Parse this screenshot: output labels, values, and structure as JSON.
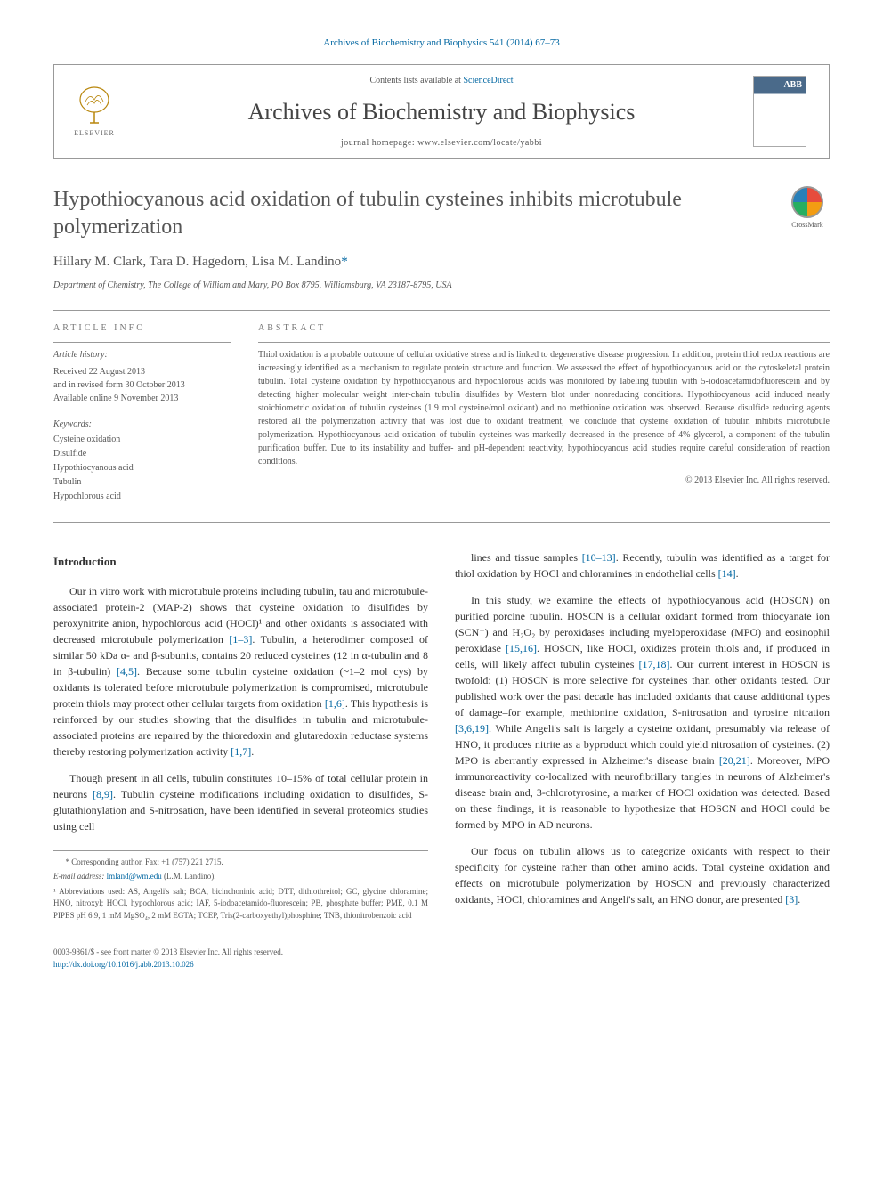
{
  "citation": {
    "text": "Archives of Biochemistry and Biophysics 541 (2014) 67–73"
  },
  "masthead": {
    "contents_prefix": "Contents lists available at ",
    "contents_link": "ScienceDirect",
    "journal": "Archives of Biochemistry and Biophysics",
    "homepage_prefix": "journal homepage: ",
    "homepage": "www.elsevier.com/locate/yabbi",
    "publisher": "ELSEVIER"
  },
  "article": {
    "title": "Hypothiocyanous acid oxidation of tubulin cysteines inhibits microtubule polymerization",
    "authors_html": "Hillary M. Clark, Tara D. Hagedorn, Lisa M. Landino",
    "corr_marker": "*",
    "affiliation": "Department of Chemistry, The College of William and Mary, PO Box 8795, Williamsburg, VA 23187-8795, USA",
    "crossmark_label": "CrossMark"
  },
  "info": {
    "heading": "article info",
    "history_label": "Article history:",
    "received": "Received 22 August 2013",
    "revised": "and in revised form 30 October 2013",
    "online": "Available online 9 November 2013",
    "keywords_label": "Keywords:",
    "kw1": "Cysteine oxidation",
    "kw2": "Disulfide",
    "kw3": "Hypothiocyanous acid",
    "kw4": "Tubulin",
    "kw5": "Hypochlorous acid"
  },
  "abstract": {
    "heading": "abstract",
    "text": "Thiol oxidation is a probable outcome of cellular oxidative stress and is linked to degenerative disease progression. In addition, protein thiol redox reactions are increasingly identified as a mechanism to regulate protein structure and function. We assessed the effect of hypothiocyanous acid on the cytoskeletal protein tubulin. Total cysteine oxidation by hypothiocyanous and hypochlorous acids was monitored by labeling tubulin with 5-iodoacetamidofluorescein and by detecting higher molecular weight inter-chain tubulin disulfides by Western blot under nonreducing conditions. Hypothiocyanous acid induced nearly stoichiometric oxidation of tubulin cysteines (1.9 mol cysteine/mol oxidant) and no methionine oxidation was observed. Because disulfide reducing agents restored all the polymerization activity that was lost due to oxidant treatment, we conclude that cysteine oxidation of tubulin inhibits microtubule polymerization. Hypothiocyanous acid oxidation of tubulin cysteines was markedly decreased in the presence of 4% glycerol, a component of the tubulin purification buffer. Due to its instability and buffer- and pH-dependent reactivity, hypothiocyanous acid studies require careful consideration of reaction conditions.",
    "copyright": "© 2013 Elsevier Inc. All rights reserved."
  },
  "body": {
    "intro_heading": "Introduction",
    "p1": "Our in vitro work with microtubule proteins including tubulin, tau and microtubule-associated protein-2 (MAP-2) shows that cysteine oxidation to disulfides by peroxynitrite anion, hypochlorous acid (HOCl)¹ and other oxidants is associated with decreased microtubule polymerization [1–3]. Tubulin, a heterodimer composed of similar 50 kDa α- and β-subunits, contains 20 reduced cysteines (12 in α-tubulin and 8 in β-tubulin) [4,5]. Because some tubulin cysteine oxidation (~1–2 mol cys) by oxidants is tolerated before microtubule polymerization is compromised, microtubule protein thiols may protect other cellular targets from oxidation [1,6]. This hypothesis is reinforced by our studies showing that the disulfides in tubulin and microtubule-associated proteins are repaired by the thioredoxin and glutaredoxin reductase systems thereby restoring polymerization activity [1,7].",
    "p2": "Though present in all cells, tubulin constitutes 10–15% of total cellular protein in neurons [8,9]. Tubulin cysteine modifications including oxidation to disulfides, S-glutathionylation and S-nitrosation, have been identified in several proteomics studies using cell",
    "p3": "lines and tissue samples [10–13]. Recently, tubulin was identified as a target for thiol oxidation by HOCl and chloramines in endothelial cells [14].",
    "p4": "In this study, we examine the effects of hypothiocyanous acid (HOSCN) on purified porcine tubulin. HOSCN is a cellular oxidant formed from thiocyanate ion (SCN⁻) and H₂O₂ by peroxidases including myeloperoxidase (MPO) and eosinophil peroxidase [15,16]. HOSCN, like HOCl, oxidizes protein thiols and, if produced in cells, will likely affect tubulin cysteines [17,18]. Our current interest in HOSCN is twofold: (1) HOSCN is more selective for cysteines than other oxidants tested. Our published work over the past decade has included oxidants that cause additional types of damage–for example, methionine oxidation, S-nitrosation and tyrosine nitration [3,6,19]. While Angeli's salt is largely a cysteine oxidant, presumably via release of HNO, it produces nitrite as a byproduct which could yield nitrosation of cysteines. (2) MPO is aberrantly expressed in Alzheimer's disease brain [20,21]. Moreover, MPO immunoreactivity co-localized with neurofibrillary tangles in neurons of Alzheimer's disease brain and, 3-chlorotyrosine, a marker of HOCl oxidation was detected. Based on these findings, it is reasonable to hypothesize that HOSCN and HOCl could be formed by MPO in AD neurons.",
    "p5": "Our focus on tubulin allows us to categorize oxidants with respect to their specificity for cysteine rather than other amino acids. Total cysteine oxidation and effects on microtubule polymerization by HOSCN and previously characterized oxidants, HOCl, chloramines and Angeli's salt, an HNO donor, are presented [3]."
  },
  "footnotes": {
    "corr": "* Corresponding author. Fax: +1 (757) 221 2715.",
    "email_label": "E-mail address: ",
    "email": "lmland@wm.edu",
    "email_who": " (L.M. Landino).",
    "abbrev": "¹ Abbreviations used: AS, Angeli's salt; BCA, bicinchoninic acid; DTT, dithiothreitol; GC, glycine chloramine; HNO, nitroxyl; HOCl, hypochlorous acid; IAF, 5-iodoacetamido-fluorescein; PB, phosphate buffer; PME, 0.1 M PIPES pH 6.9, 1 mM MgSO₄, 2 mM EGTA; TCEP, Tris(2-carboxyethyl)phosphine; TNB, thionitrobenzoic acid"
  },
  "footer": {
    "line1": "0003-9861/$ - see front matter © 2013 Elsevier Inc. All rights reserved.",
    "doi": "http://dx.doi.org/10.1016/j.abb.2013.10.026"
  }
}
